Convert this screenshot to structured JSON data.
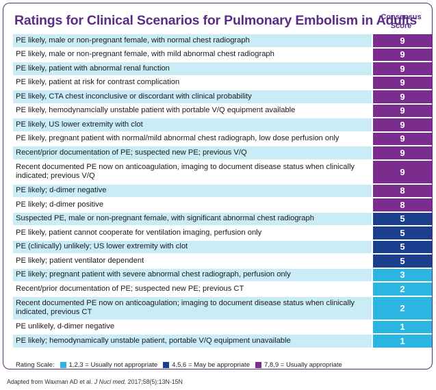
{
  "title": "Ratings for Clinical Scenarios for Pulmonary Embolism in Adults",
  "score_header": {
    "line1": "Consensus",
    "line2": "Score"
  },
  "colors": {
    "purple": "#7b2d8e",
    "navy": "#1c3e8f",
    "cyan": "#2bb5e3",
    "title": "#5b2d86"
  },
  "rows": [
    {
      "text": "PE likely, male or non-pregnant female, with normal chest radiograph",
      "score": "9",
      "level": "purple"
    },
    {
      "text": "PE likely, male or non-pregnant female, with mild abnormal chest radiograph",
      "score": "9",
      "level": "purple"
    },
    {
      "text": "PE likely, patient with abnormal renal function",
      "score": "9",
      "level": "purple"
    },
    {
      "text": "PE likely, patient at risk for contrast complication",
      "score": "9",
      "level": "purple"
    },
    {
      "text": "PE likely, CTA chest inconclusive or discordant with clinical probability",
      "score": "9",
      "level": "purple"
    },
    {
      "text": "PE likely, hemodynamcially unstable patient with portable V/Q equipment available",
      "score": "9",
      "level": "purple"
    },
    {
      "text": "PE likely, US lower extremity with clot",
      "score": "9",
      "level": "purple"
    },
    {
      "text": "PE likely, pregnant patient with normal/mild abnormal chest radiograph, low dose perfusion only",
      "score": "9",
      "level": "purple"
    },
    {
      "text": "Recent/prior documentation of PE; suspected new PE; previous V/Q",
      "score": "9",
      "level": "purple"
    },
    {
      "text": "Recent documented PE now on anticoagulation, imaging to document disease status when clinically indicated; previous V/Q",
      "score": "9",
      "level": "purple"
    },
    {
      "text": "PE likely; d-dimer negative",
      "score": "8",
      "level": "purple"
    },
    {
      "text": "PE likely; d-dimer positive",
      "score": "8",
      "level": "purple"
    },
    {
      "text": "Suspected PE, male or non-pregnant female, with significant abnormal chest radiograph",
      "score": "5",
      "level": "navy"
    },
    {
      "text": "PE likely, patient cannot cooperate for ventilation imaging, perfusion only",
      "score": "5",
      "level": "navy"
    },
    {
      "text": "PE (clinically) unlikely; US lower extremity with clot",
      "score": "5",
      "level": "navy"
    },
    {
      "text": "PE likely; patient ventilator dependent",
      "score": "5",
      "level": "navy"
    },
    {
      "text": "PE likely; pregnant patient with severe abnormal chest radiograph, perfusion only",
      "score": "3",
      "level": "cyan"
    },
    {
      "text": "Recent/prior documentation of PE; suspected new PE; previous CT",
      "score": "2",
      "level": "cyan"
    },
    {
      "text": "Recent documented PE now on anticoagulation; imaging to document disease status when clinically indicated, previous CT",
      "score": "2",
      "level": "cyan"
    },
    {
      "text": "PE unlikely, d-dimer negative",
      "score": "1",
      "level": "cyan"
    },
    {
      "text": "PE likely; hemodynamically unstable patient, portable V/Q equipment unavailable",
      "score": "1",
      "level": "cyan"
    }
  ],
  "legend": {
    "label": "Rating Scale:",
    "items": [
      {
        "text": "1,2,3 = Usually not appropriate",
        "level": "cyan"
      },
      {
        "text": "4,5,6 = May be appropriate",
        "level": "navy"
      },
      {
        "text": "7,8,9 = Usually appropriate",
        "level": "purple"
      }
    ]
  },
  "footer": {
    "prefix": "Adapted from Waxman AD et al. ",
    "journal": "J Nucl med.",
    "suffix": " 2017;58(5):13N-15N"
  }
}
